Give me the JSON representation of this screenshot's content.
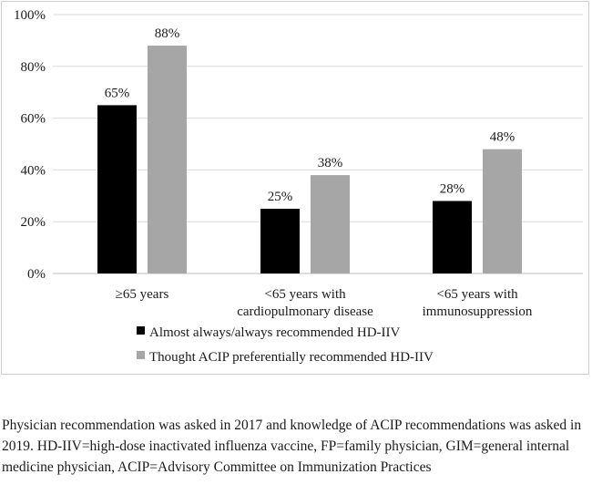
{
  "chart_data": {
    "type": "bar",
    "categories": [
      [
        "≥65 years"
      ],
      [
        "<65 years with",
        "cardiopulmonary disease"
      ],
      [
        "<65 years with",
        "immunosuppression"
      ]
    ],
    "series": [
      {
        "name": "Almost always/always recommended HD-IIV",
        "color": "#000000",
        "values": [
          65,
          25,
          28
        ],
        "labels": [
          "65%",
          "25%",
          "28%"
        ]
      },
      {
        "name": "Thought ACIP preferentially recommended HD-IIV",
        "color": "#a6a6a6",
        "values": [
          88,
          38,
          48
        ],
        "labels": [
          "88%",
          "38%",
          "48%"
        ]
      }
    ],
    "ylim": [
      0,
      100
    ],
    "yticks": [
      0,
      20,
      40,
      60,
      80,
      100
    ],
    "ytick_labels": [
      "0%",
      "20%",
      "40%",
      "60%",
      "80%",
      "100%"
    ],
    "grid": true,
    "legend_position": "bottom-left",
    "title": "",
    "xlabel": "",
    "ylabel": ""
  },
  "caption": "Physician recommendation was asked in 2017 and knowledge of ACIP recommendations was asked in 2019. HD-IIV=high-dose inactivated influenza vaccine, FP=family physician, GIM=general internal medicine physician, ACIP=Advisory Committee on Immunization Practices"
}
